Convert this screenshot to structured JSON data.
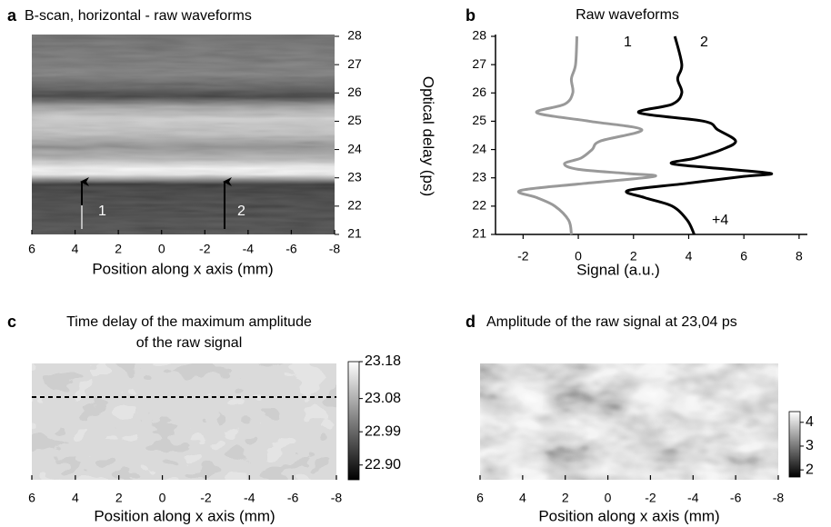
{
  "chart_data": [
    {
      "type": "heatmap",
      "panel_label": "a",
      "title": "B-scan, horizontal - raw waveforms",
      "x_label": "Position along x axis (mm)",
      "xlim": [
        6,
        -8
      ],
      "xticks": [
        6,
        4,
        2,
        0,
        -2,
        -4,
        -6,
        -8
      ],
      "ylim": [
        21,
        28
      ],
      "yticks": [
        21,
        22,
        23,
        24,
        25,
        26,
        27,
        28
      ],
      "annotations": [
        "1",
        "2"
      ]
    },
    {
      "type": "line",
      "panel_label": "b",
      "title": "Raw waveforms",
      "x_label": "Signal (a.u.)",
      "y_label": "Optical delay (ps)",
      "xlim": [
        -3,
        8.3
      ],
      "xticks": [
        -2,
        0,
        2,
        4,
        6,
        8
      ],
      "ylim": [
        21,
        28
      ],
      "yticks": [
        21,
        22,
        23,
        24,
        25,
        26,
        27,
        28
      ],
      "y": [
        28,
        27,
        26.5,
        26,
        25.6,
        25.3,
        25,
        24.7,
        24.3,
        24,
        23.7,
        23.5,
        23.3,
        23.15,
        23.05,
        22.8,
        22.55,
        22.3,
        22,
        21.5,
        21
      ],
      "series": [
        {
          "name": "1",
          "color": "#999999",
          "values": [
            -0.05,
            -0.1,
            -0.25,
            -0.2,
            -0.5,
            -1.5,
            0.4,
            2.3,
            0.8,
            0.5,
            0.1,
            -0.5,
            0.0,
            1.8,
            2.75,
            0.2,
            -2.1,
            -1.5,
            -0.85,
            -0.35,
            -0.25
          ]
        },
        {
          "name": "2",
          "color": "#000000",
          "values": [
            3.5,
            3.75,
            3.6,
            3.75,
            3.4,
            2.2,
            4.55,
            5.05,
            5.7,
            5.2,
            4.25,
            3.4,
            5.5,
            7.0,
            6.0,
            3.9,
            1.8,
            2.4,
            3.4,
            3.95,
            4.2
          ]
        }
      ],
      "annotations": [
        "+4"
      ]
    },
    {
      "type": "heatmap",
      "panel_label": "c",
      "title": [
        "Time delay of the maximum amplitude",
        "of the raw signal"
      ],
      "x_label": "Position along x axis (mm)",
      "xlim": [
        6,
        -8
      ],
      "xticks": [
        6,
        4,
        2,
        0,
        -2,
        -4,
        -6,
        -8
      ],
      "colorbar_lim": [
        22.86,
        23.18
      ],
      "colorbar_ticks": [
        {
          "value": 22.9,
          "label": "22.90"
        },
        22.99,
        23.08,
        23.18
      ]
    },
    {
      "type": "heatmap",
      "panel_label": "d",
      "title": "Amplitude of the raw signal at 23,04 ps",
      "x_label": "Position along x axis (mm)",
      "xlim": [
        6,
        -8
      ],
      "xticks": [
        6,
        4,
        2,
        0,
        -2,
        -4,
        -6,
        -8
      ],
      "colorbar_lim": [
        1.7,
        4.45
      ],
      "colorbar_ticks": [
        2,
        3,
        4
      ]
    }
  ]
}
